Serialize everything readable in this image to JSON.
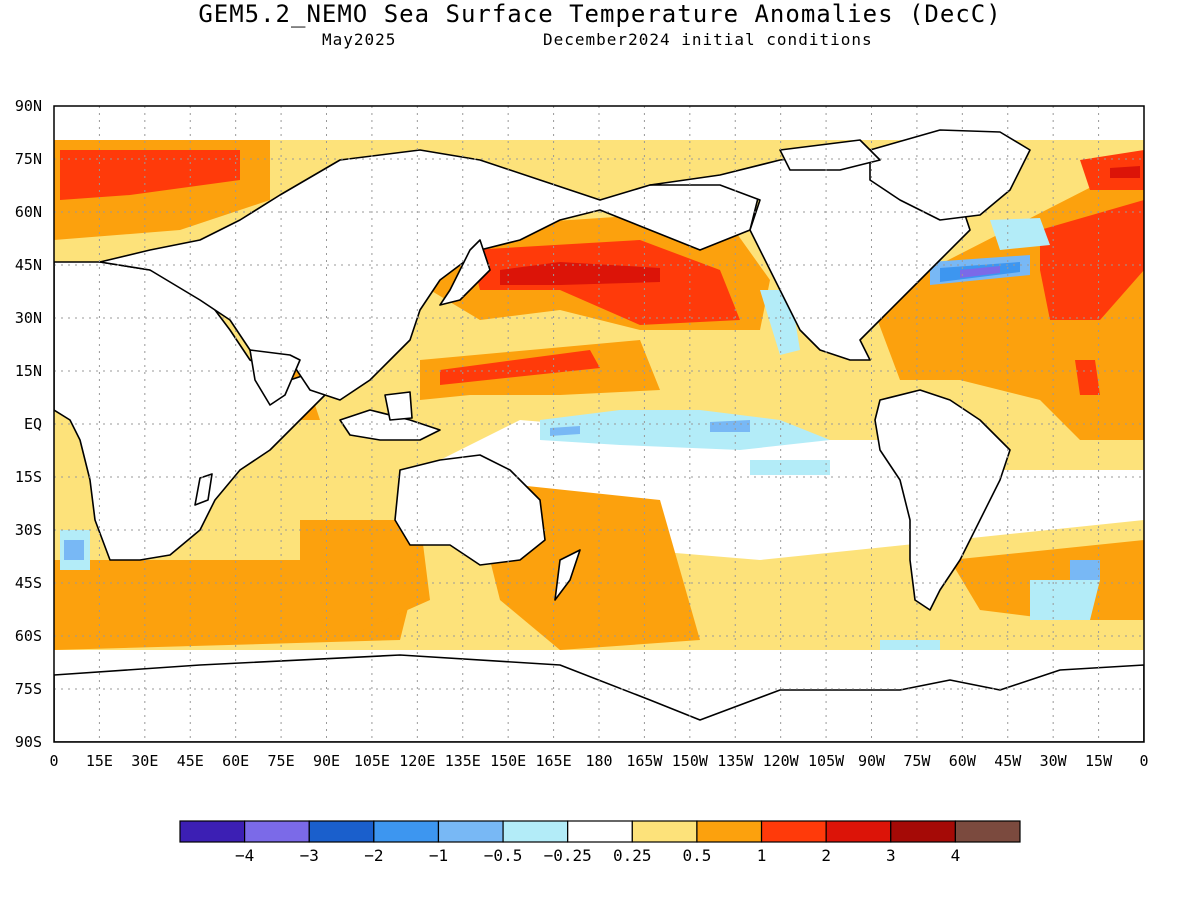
{
  "header": {
    "title": "GEM5.2_NEMO Sea Surface Temperature Anomalies (DecC)",
    "valid_month": "May2025",
    "init": "December2024 initial conditions"
  },
  "map": {
    "lat_labels": [
      "90N",
      "75N",
      "60N",
      "45N",
      "30N",
      "15N",
      "EQ",
      "15S",
      "30S",
      "45S",
      "60S",
      "75S",
      "90S"
    ],
    "lon_labels": [
      "0",
      "15E",
      "30E",
      "45E",
      "60E",
      "75E",
      "90E",
      "105E",
      "120E",
      "135E",
      "150E",
      "165E",
      "180",
      "165W",
      "150W",
      "135W",
      "120W",
      "105W",
      "90W",
      "75W",
      "60W",
      "45W",
      "30W",
      "15W",
      "0"
    ],
    "land_color": "#ffffff",
    "coast_color": "#000000"
  },
  "colorbar": {
    "colors": [
      "#3c1fb4",
      "#7b6ae8",
      "#1a5fcc",
      "#3d96f0",
      "#78b8f5",
      "#b3ecf8",
      "#ffffff",
      "#fde27a",
      "#fca10d",
      "#ff3a0a",
      "#dc1408",
      "#a50a06",
      "#7b4a3e"
    ],
    "labels": [
      "−4",
      "−3",
      "−2",
      "−1",
      "−0.5",
      "−0.25",
      "0.25",
      "0.5",
      "1",
      "2",
      "3",
      "4"
    ]
  }
}
